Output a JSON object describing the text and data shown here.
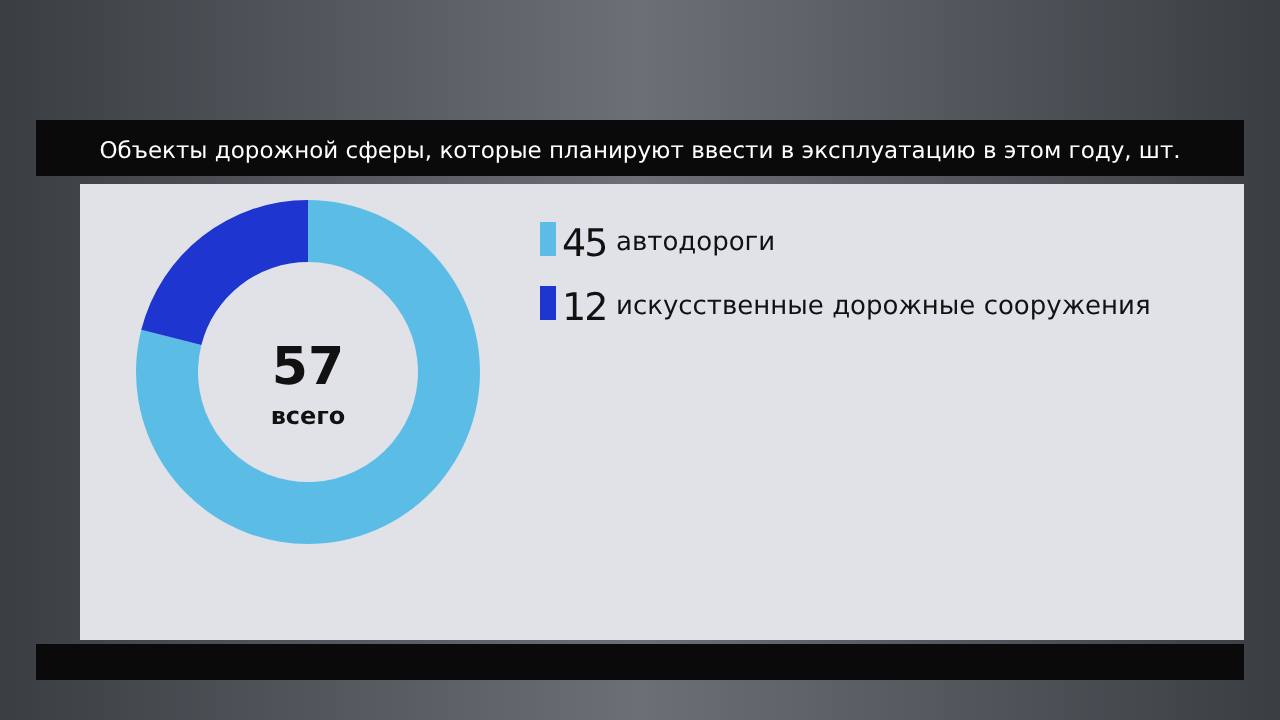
{
  "chart_data": {
    "type": "donut",
    "title": "Объекты дорожной сферы, которые планируют ввести в эксплуатацию в этом году, шт.",
    "categories": [
      "автодороги",
      "искусственные дорожные сооружения"
    ],
    "values": [
      45,
      12
    ],
    "colors": [
      "#5bbde6",
      "#1e35d0"
    ],
    "annotations": [
      "57",
      "всего"
    ],
    "data_labels": true,
    "legend": "right"
  }
}
